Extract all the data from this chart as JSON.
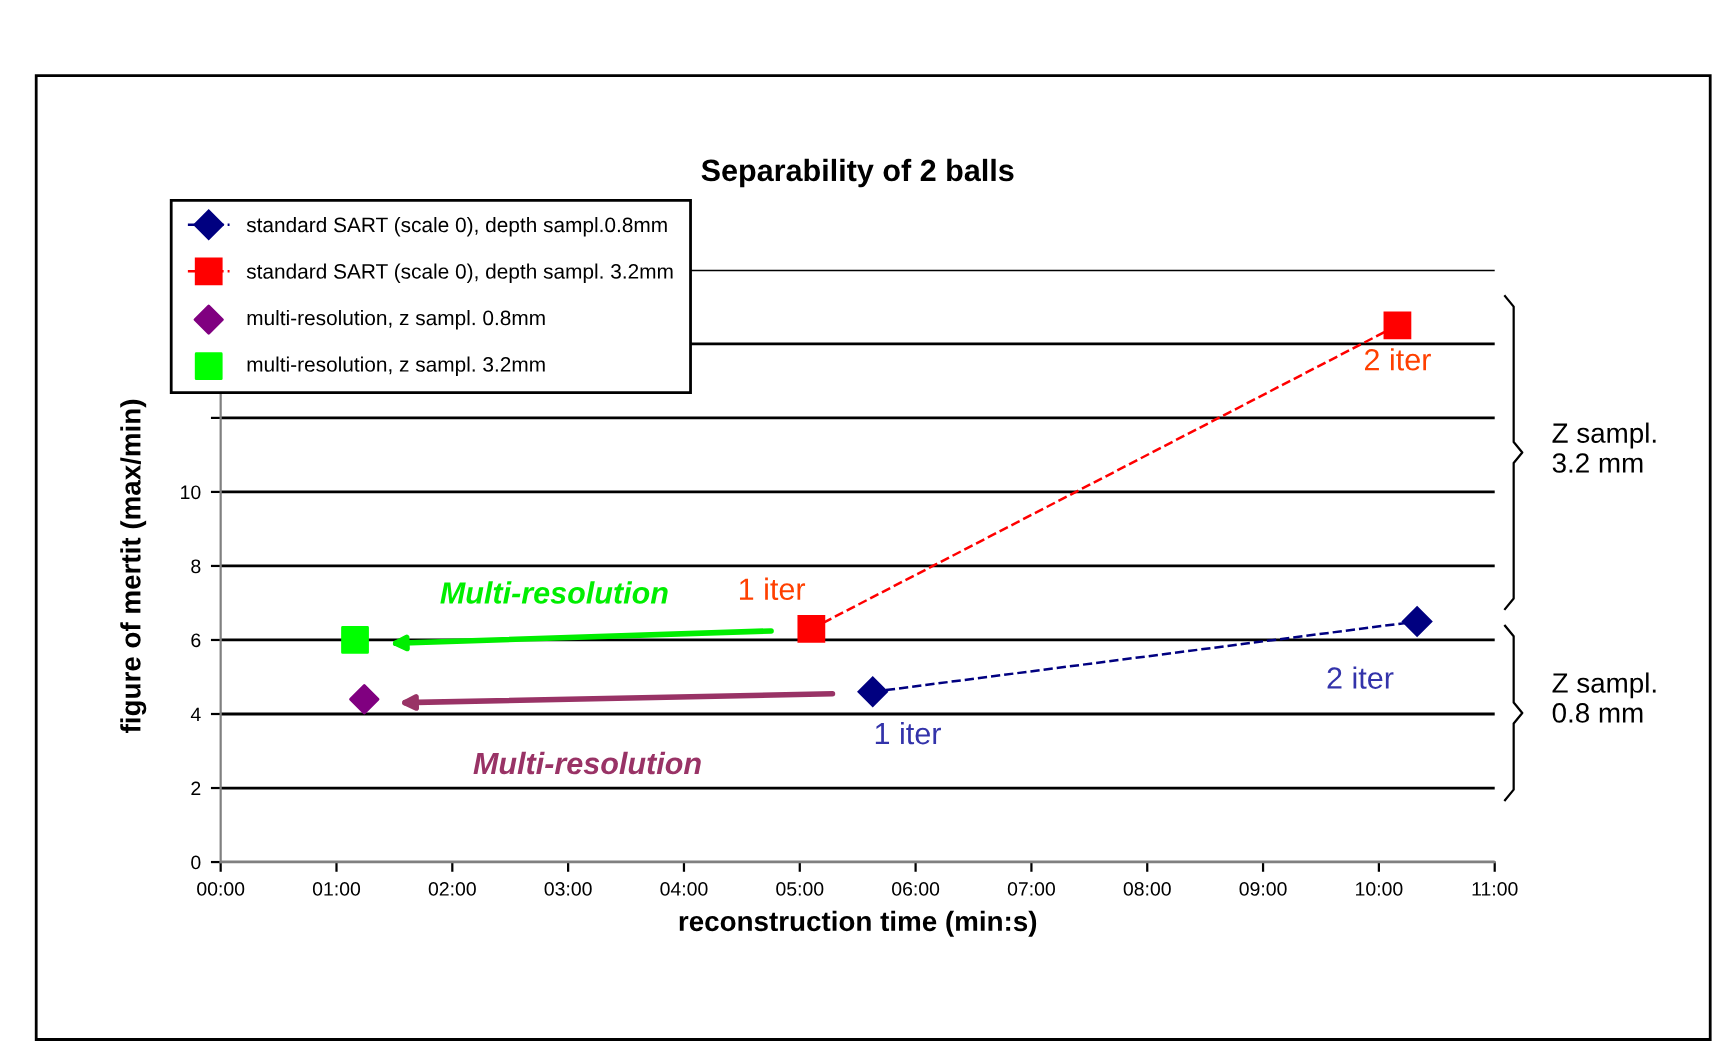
{
  "chart_data": {
    "type": "line",
    "title": "Separability of 2 balls",
    "xlabel": "reconstruction time (min:s)",
    "ylabel": "figure of mertit (max/min)",
    "xlim": [
      0,
      11
    ],
    "xticks": [
      {
        "value": 0,
        "label": "00:00"
      },
      {
        "value": 1,
        "label": "01:00"
      },
      {
        "value": 2,
        "label": "02:00"
      },
      {
        "value": 3,
        "label": "03:00"
      },
      {
        "value": 4,
        "label": "04:00"
      },
      {
        "value": 5,
        "label": "05:00"
      },
      {
        "value": 6,
        "label": "06:00"
      },
      {
        "value": 7,
        "label": "07:00"
      },
      {
        "value": 8,
        "label": "08:00"
      },
      {
        "value": 9,
        "label": "09:00"
      },
      {
        "value": 10,
        "label": "10:00"
      },
      {
        "value": 11,
        "label": "11:00"
      }
    ],
    "ylim": [
      0,
      16
    ],
    "yticks": [
      0,
      2,
      4,
      6,
      8,
      10,
      {
        "value": 12,
        "label": null
      },
      {
        "value": 14,
        "label": null
      },
      {
        "value": 16,
        "label": null
      }
    ],
    "grid": "y",
    "legend": "top left",
    "series": [
      {
        "name": "standard SART (scale 0), depth sampl.0.8mm",
        "color": "#000080",
        "marker": "diamond",
        "line_style": "dashed",
        "x": [
          5.63,
          10.33
        ],
        "values": [
          4.6,
          6.5
        ]
      },
      {
        "name": "standard SART (scale 0), depth sampl. 3.2mm",
        "color": "#ff0000",
        "marker": "square",
        "line_style": "dashed",
        "x": [
          5.1,
          10.16
        ],
        "values": [
          6.3,
          14.5
        ]
      },
      {
        "name": "multi-resolution, z sampl. 0.8mm",
        "type": "scatter",
        "color": "#800080",
        "marker": "diamond",
        "x": [
          1.24
        ],
        "values": [
          4.4
        ]
      },
      {
        "name": "multi-resolution, z sampl. 3.2mm",
        "type": "scatter",
        "color": "#00ff00",
        "marker": "square",
        "x": [
          1.16
        ],
        "values": [
          6.0
        ]
      }
    ],
    "annotations": [
      {
        "text": "1 iter",
        "x": 5.1,
        "y": 6.3
      },
      {
        "text": "2 iter",
        "x": 10.16,
        "y": 14.5
      },
      {
        "text": "1 iter",
        "x": 5.63,
        "y": 4.6
      },
      {
        "text": "2 iter",
        "x": 10.33,
        "y": 6.5
      },
      "Multi-resolution",
      "Multi-resolution",
      "Z sampl.\n3.2 mm",
      "Z sampl.\n0.8 mm"
    ]
  }
}
